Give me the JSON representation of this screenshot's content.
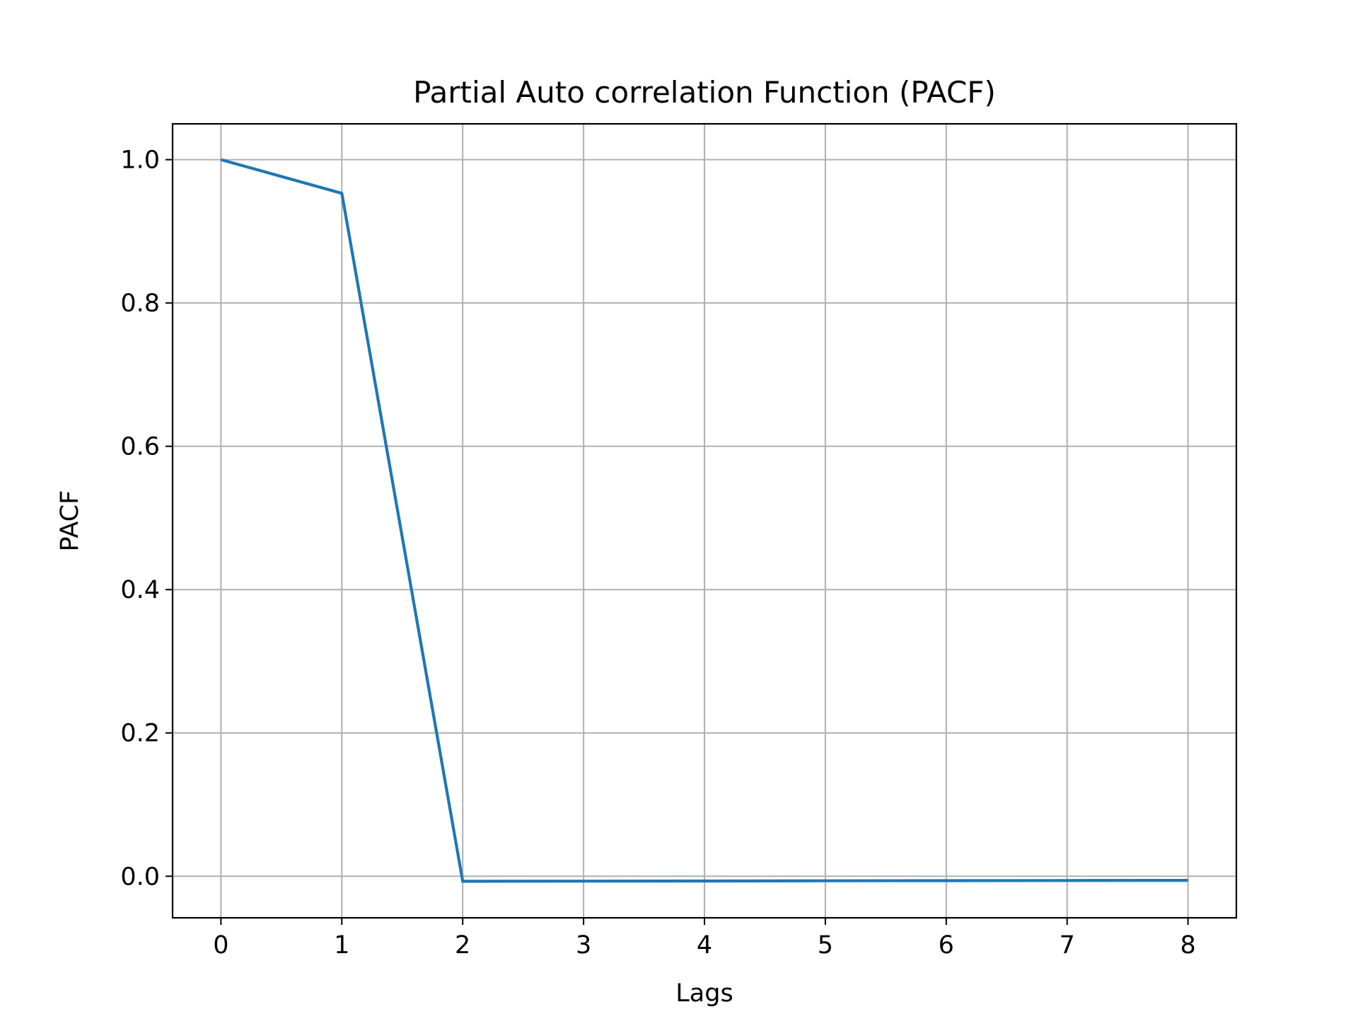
{
  "chart_data": {
    "type": "line",
    "title": "Partial Auto correlation Function (PACF)",
    "xlabel": "Lags",
    "ylabel": "PACF",
    "xlim": [
      -0.4,
      8.4
    ],
    "ylim": [
      -0.058,
      1.05
    ],
    "xticks": [
      0,
      1,
      2,
      3,
      4,
      5,
      6,
      7,
      8
    ],
    "yticks": [
      0.0,
      0.2,
      0.4,
      0.6,
      0.8,
      1.0
    ],
    "xtick_labels": [
      "0",
      "1",
      "2",
      "3",
      "4",
      "5",
      "6",
      "7",
      "8"
    ],
    "ytick_labels": [
      "0.0",
      "0.2",
      "0.4",
      "0.6",
      "0.8",
      "1.0"
    ],
    "grid": true,
    "series": [
      {
        "color": "#1f77b4",
        "x": [
          0,
          1,
          2,
          3,
          4,
          5,
          6,
          7,
          8
        ],
        "y": [
          1.0,
          0.953,
          -0.007,
          -0.0068,
          -0.0066,
          -0.0064,
          -0.0062,
          -0.006,
          -0.0058
        ]
      }
    ]
  }
}
